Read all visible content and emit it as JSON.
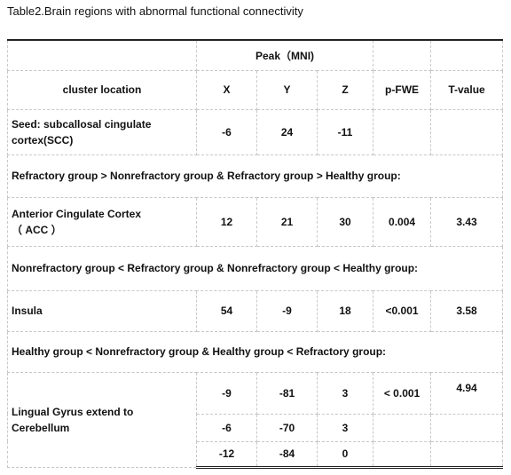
{
  "title": "Table2.Brain regions with abnormal functional connectivity",
  "table": {
    "peak_header": "Peak（MNI)",
    "columns": [
      "cluster location",
      "X",
      "Y",
      "Z",
      "p-FWE",
      "T-value"
    ],
    "rows": [
      {
        "location": "Seed: subcallosal cingulate\ncortex(SCC)",
        "values": [
          "-6",
          "24",
          "-11"
        ]
      },
      {
        "group": "Refractory group > Nonrefractory group &  Refractory group > Healthy group:"
      },
      {
        "location": "Anterior Cingulate Cortex\n（ ACC ）",
        "values": [
          "12",
          "21",
          "30",
          "0.004",
          "3.43"
        ]
      },
      {
        "group": "Nonrefractory group < Refractory group &  Nonrefractory group < Healthy group:"
      },
      {
        "location": "Insula",
        "values": [
          "54",
          "-9",
          "18",
          "<0.001",
          "3.58"
        ]
      },
      {
        "group": "Healthy group < Nonrefractory group &  Healthy group < Refractory group:"
      },
      {
        "location": "Lingual Gyrus extend to\nCerebellum",
        "values": [
          "-9",
          "-81",
          "3",
          "< 0.001",
          "4.94"
        ]
      },
      {
        "values": [
          "-6",
          "-70",
          "3"
        ]
      },
      {
        "values": [
          "-12",
          "-84",
          "0"
        ]
      }
    ]
  }
}
